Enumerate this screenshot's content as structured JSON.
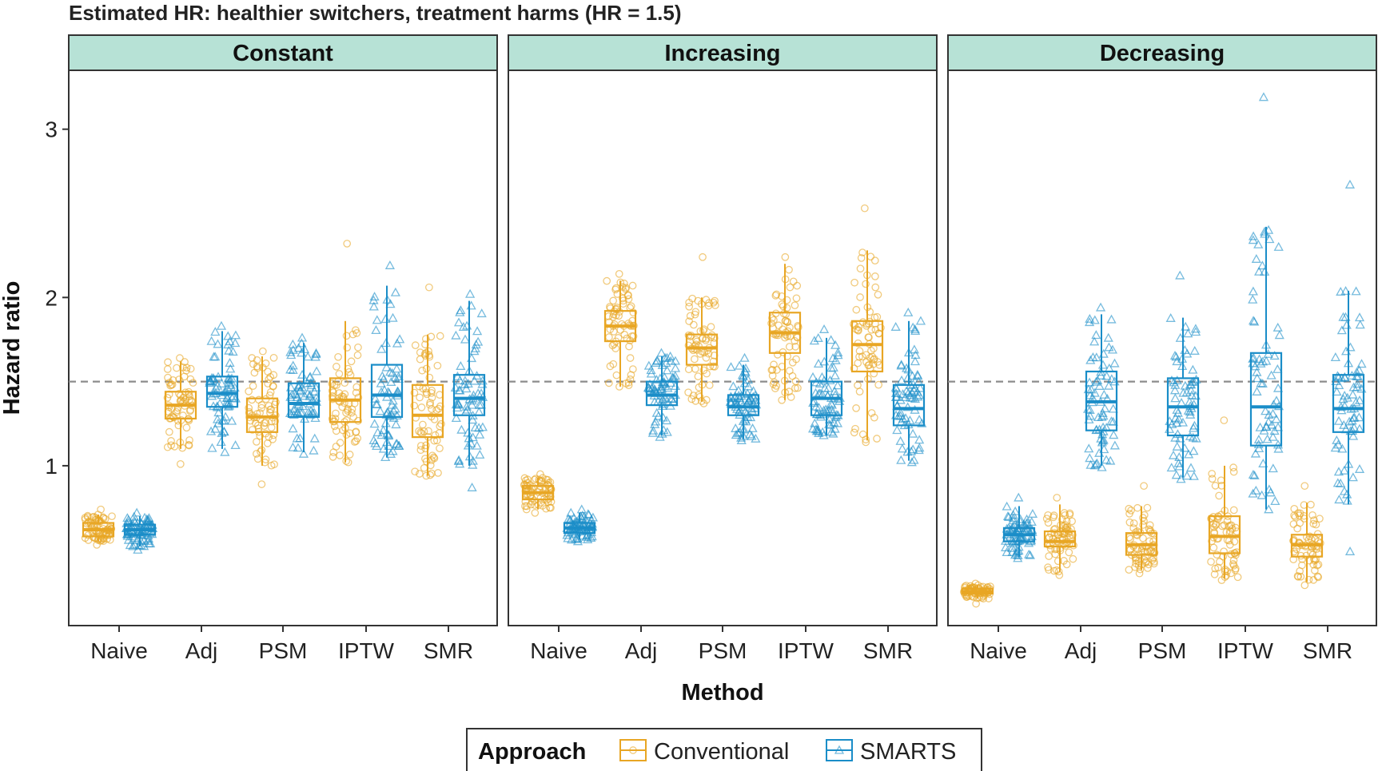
{
  "chart_data": {
    "type": "box",
    "title": "Estimated HR: healthier switchers, treatment harms (HR = 1.5)",
    "xlabel": "Method",
    "ylabel": "Hazard ratio",
    "ylim": [
      0.05,
      3.35
    ],
    "yticks": [
      1,
      2,
      3
    ],
    "reference_line": 1.5,
    "categories": [
      "Naive",
      "Adj",
      "PSM",
      "IPTW",
      "SMR"
    ],
    "legend": {
      "title": "Approach",
      "position": "bottom",
      "entries": [
        {
          "name": "Conventional",
          "color": "#E8A624",
          "marker": "circle"
        },
        {
          "name": "SMARTS",
          "color": "#1A8DC8",
          "marker": "triangle"
        }
      ]
    },
    "panels": [
      {
        "title": "Constant",
        "series": [
          {
            "name": "Conventional",
            "boxes": [
              {
                "q1": 0.58,
                "median": 0.62,
                "q3": 0.66,
                "min": 0.55,
                "max": 0.71,
                "pmin": 0.53,
                "pmax": 0.74
              },
              {
                "q1": 1.28,
                "median": 1.36,
                "q3": 1.44,
                "min": 1.1,
                "max": 1.62,
                "pmin": 1.01,
                "pmax": 1.64
              },
              {
                "q1": 1.2,
                "median": 1.29,
                "q3": 1.4,
                "min": 1.0,
                "max": 1.65,
                "pmin": 0.89,
                "pmax": 1.68
              },
              {
                "q1": 1.26,
                "median": 1.39,
                "q3": 1.52,
                "min": 1.02,
                "max": 1.86,
                "pmin": 1.02,
                "pmax": 2.32
              },
              {
                "q1": 1.17,
                "median": 1.3,
                "q3": 1.48,
                "min": 0.94,
                "max": 1.78,
                "pmin": 0.94,
                "pmax": 2.06
              }
            ]
          },
          {
            "name": "SMARTS",
            "boxes": [
              {
                "q1": 0.59,
                "median": 0.62,
                "q3": 0.65,
                "min": 0.52,
                "max": 0.7,
                "pmin": 0.5,
                "pmax": 0.72
              },
              {
                "q1": 1.35,
                "median": 1.43,
                "q3": 1.53,
                "min": 1.1,
                "max": 1.8,
                "pmin": 1.08,
                "pmax": 1.83
              },
              {
                "q1": 1.29,
                "median": 1.37,
                "q3": 1.49,
                "min": 1.08,
                "max": 1.73,
                "pmin": 1.07,
                "pmax": 1.76
              },
              {
                "q1": 1.29,
                "median": 1.42,
                "q3": 1.6,
                "min": 1.05,
                "max": 2.07,
                "pmin": 1.05,
                "pmax": 2.19
              },
              {
                "q1": 1.3,
                "median": 1.4,
                "q3": 1.54,
                "min": 1.0,
                "max": 1.98,
                "pmin": 0.87,
                "pmax": 2.02
              }
            ]
          }
        ]
      },
      {
        "title": "Increasing",
        "series": [
          {
            "name": "Conventional",
            "boxes": [
              {
                "q1": 0.8,
                "median": 0.84,
                "q3": 0.88,
                "min": 0.74,
                "max": 0.93,
                "pmin": 0.72,
                "pmax": 0.95
              },
              {
                "q1": 1.74,
                "median": 1.83,
                "q3": 1.92,
                "min": 1.47,
                "max": 2.1,
                "pmin": 1.47,
                "pmax": 2.14
              },
              {
                "q1": 1.6,
                "median": 1.7,
                "q3": 1.78,
                "min": 1.38,
                "max": 2.0,
                "pmin": 1.37,
                "pmax": 2.24
              },
              {
                "q1": 1.67,
                "median": 1.79,
                "q3": 1.91,
                "min": 1.39,
                "max": 2.2,
                "pmin": 1.39,
                "pmax": 2.24
              },
              {
                "q1": 1.56,
                "median": 1.72,
                "q3": 1.86,
                "min": 1.15,
                "max": 2.28,
                "pmin": 1.14,
                "pmax": 2.53
              }
            ]
          },
          {
            "name": "SMARTS",
            "boxes": [
              {
                "q1": 0.6,
                "median": 0.63,
                "q3": 0.66,
                "min": 0.56,
                "max": 0.72,
                "pmin": 0.55,
                "pmax": 0.74
              },
              {
                "q1": 1.36,
                "median": 1.42,
                "q3": 1.5,
                "min": 1.18,
                "max": 1.65,
                "pmin": 1.17,
                "pmax": 1.67
              },
              {
                "q1": 1.3,
                "median": 1.35,
                "q3": 1.42,
                "min": 1.16,
                "max": 1.6,
                "pmin": 1.15,
                "pmax": 1.64
              },
              {
                "q1": 1.3,
                "median": 1.4,
                "q3": 1.5,
                "min": 1.18,
                "max": 1.76,
                "pmin": 1.18,
                "pmax": 1.81
              },
              {
                "q1": 1.24,
                "median": 1.34,
                "q3": 1.48,
                "min": 1.03,
                "max": 1.86,
                "pmin": 1.02,
                "pmax": 1.91
              }
            ]
          }
        ]
      },
      {
        "title": "Decreasing",
        "series": [
          {
            "name": "Conventional",
            "boxes": [
              {
                "q1": 0.24,
                "median": 0.25,
                "q3": 0.27,
                "min": 0.21,
                "max": 0.29,
                "pmin": 0.18,
                "pmax": 0.3
              },
              {
                "q1": 0.52,
                "median": 0.55,
                "q3": 0.61,
                "min": 0.37,
                "max": 0.77,
                "pmin": 0.35,
                "pmax": 0.81
              },
              {
                "q1": 0.47,
                "median": 0.53,
                "q3": 0.6,
                "min": 0.38,
                "max": 0.76,
                "pmin": 0.36,
                "pmax": 0.88
              },
              {
                "q1": 0.48,
                "median": 0.58,
                "q3": 0.7,
                "min": 0.33,
                "max": 1.0,
                "pmin": 0.32,
                "pmax": 1.27
              },
              {
                "q1": 0.46,
                "median": 0.53,
                "q3": 0.59,
                "min": 0.31,
                "max": 0.78,
                "pmin": 0.29,
                "pmax": 0.88
              }
            ]
          },
          {
            "name": "SMARTS",
            "boxes": [
              {
                "q1": 0.55,
                "median": 0.59,
                "q3": 0.63,
                "min": 0.46,
                "max": 0.76,
                "pmin": 0.45,
                "pmax": 0.81
              },
              {
                "q1": 1.21,
                "median": 1.38,
                "q3": 1.56,
                "min": 1.0,
                "max": 1.9,
                "pmin": 0.99,
                "pmax": 1.94
              },
              {
                "q1": 1.18,
                "median": 1.35,
                "q3": 1.52,
                "min": 0.93,
                "max": 1.88,
                "pmin": 0.92,
                "pmax": 2.13
              },
              {
                "q1": 1.12,
                "median": 1.35,
                "q3": 1.67,
                "min": 0.74,
                "max": 2.42,
                "pmin": 0.74,
                "pmax": 3.19
              },
              {
                "q1": 1.2,
                "median": 1.34,
                "q3": 1.54,
                "min": 0.77,
                "max": 2.04,
                "pmin": 0.49,
                "pmax": 2.67
              }
            ]
          }
        ]
      }
    ]
  }
}
